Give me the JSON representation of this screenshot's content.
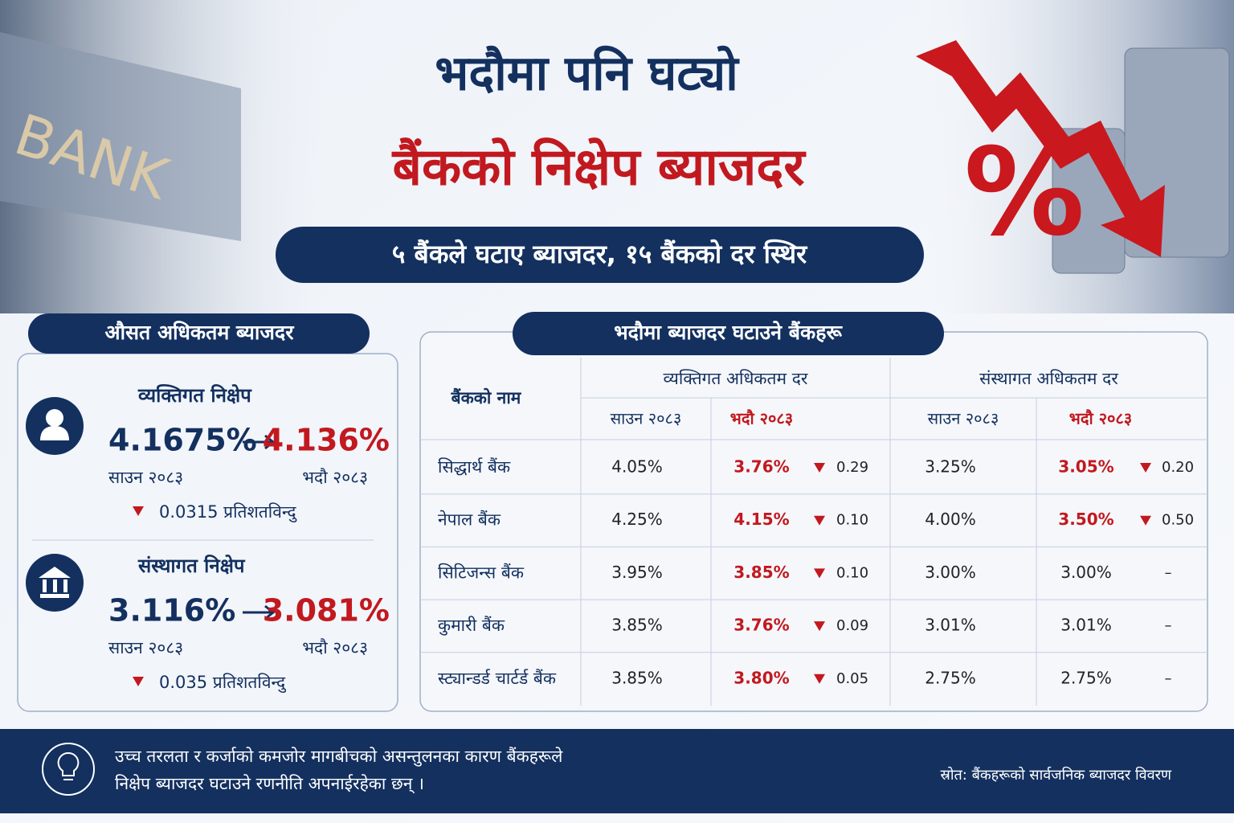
{
  "decor": {
    "bank_sign": "BANK",
    "percent_symbol": "%"
  },
  "header": {
    "title_line1": "भदौमा पनि घट्यो",
    "title_line2": "बैंकको निक्षेप ब्याजदर",
    "subtitle": "५ बैंकले घटाए ब्याजदर, १५ बैंकको दर स्थिर"
  },
  "average_panel": {
    "heading": "औसत अधिकतम ब्याजदर",
    "sections": [
      {
        "label": "व्यक्तिगत निक्षेप",
        "previous": "4.1675%",
        "current": "4.136%",
        "previous_month": "साउन २०८३",
        "current_month": "भदौ २०८३",
        "change": "0.0315 प्रतिशतविन्दु"
      },
      {
        "label": "संस्थागत निक्षेप",
        "previous": "3.116%",
        "current": "3.081%",
        "previous_month": "साउन २०८३",
        "current_month": "भदौ २०८३",
        "change": "0.035 प्रतिशतविन्दु"
      }
    ]
  },
  "table": {
    "heading": "भदौमा ब्याजदर घटाउने बैंकहरू",
    "name_header": "बैंकको नाम",
    "groups": [
      {
        "label": "व्यक्तिगत अधिकतम दर",
        "columns": [
          "साउन २०८३",
          "भदौ २०८३"
        ]
      },
      {
        "label": "संस्थागत अधिकतम दर",
        "columns": [
          "साउन २०८३",
          "भदौ २०८३"
        ]
      }
    ],
    "rows": [
      [
        "सिद्धार्थ बैंक",
        "4.05%",
        "3.76%",
        "0.29",
        "3.25%",
        "3.05%",
        "0.20"
      ],
      [
        "नेपाल बैंक",
        "4.25%",
        "4.15%",
        "0.10",
        "4.00%",
        "3.50%",
        "0.50"
      ],
      [
        "सिटिजन्स बैंक",
        "3.95%",
        "3.85%",
        "0.10",
        "3.00%",
        "3.00%",
        "–"
      ],
      [
        "कुमारी बैंक",
        "3.85%",
        "3.76%",
        "0.09",
        "3.01%",
        "3.01%",
        "–"
      ],
      [
        "स्ट्यान्डर्ड चार्टर्ड बैंक",
        "3.85%",
        "3.80%",
        "0.05",
        "2.75%",
        "2.75%",
        "–"
      ]
    ]
  },
  "footer": {
    "note_lines": [
      "उच्च तरलता र कर्जाको कमजोर मागबीचको असन्तुलनका कारण बैंकहरूले",
      "निक्षेप ब्याजदर घटाउने रणनीति अपनाईरहेका छन् ।"
    ],
    "source": "स्रोत: बैंकहरूको सार्वजनिक ब्याजदर विवरण"
  }
}
